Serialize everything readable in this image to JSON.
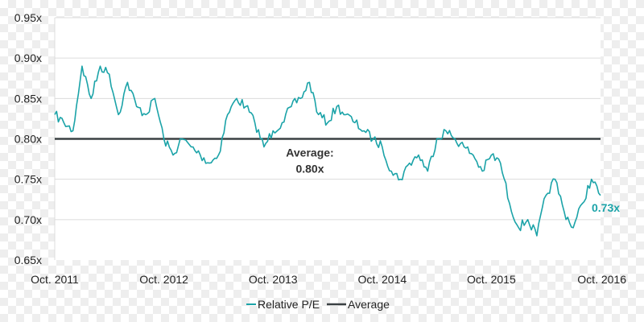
{
  "colors": {
    "series": "#1ba3a8",
    "average": "#3a4043",
    "grid": "#dcdcdc",
    "plot_bg": "#ffffff",
    "text": "#222222"
  },
  "chart_data": {
    "type": "line",
    "title": "",
    "xlabel": "",
    "ylabel": "",
    "ylim": [
      0.65,
      0.95
    ],
    "yticks": [
      "0.65x",
      "0.70x",
      "0.75x",
      "0.80x",
      "0.85x",
      "0.90x",
      "0.95x"
    ],
    "xlim": [
      "2011-10",
      "2016-10"
    ],
    "xticks": [
      "Oct. 2011",
      "Oct. 2012",
      "Oct. 2013",
      "Oct. 2014",
      "Oct. 2015",
      "Oct. 2016"
    ],
    "grid": true,
    "legend_position": "bottom",
    "series": [
      {
        "name": "Relative P/E",
        "color": "#1ba3a8",
        "x": [
          "2011-10",
          "2011-11",
          "2011-12",
          "2012-01",
          "2012-02",
          "2012-03",
          "2012-04",
          "2012-05",
          "2012-06",
          "2012-07",
          "2012-08",
          "2012-09",
          "2012-10",
          "2012-11",
          "2012-12",
          "2013-01",
          "2013-02",
          "2013-03",
          "2013-04",
          "2013-05",
          "2013-06",
          "2013-07",
          "2013-08",
          "2013-09",
          "2013-10",
          "2013-11",
          "2013-12",
          "2014-01",
          "2014-02",
          "2014-03",
          "2014-04",
          "2014-05",
          "2014-06",
          "2014-07",
          "2014-08",
          "2014-09",
          "2014-10",
          "2014-11",
          "2014-12",
          "2015-01",
          "2015-02",
          "2015-03",
          "2015-04",
          "2015-05",
          "2015-06",
          "2015-07",
          "2015-08",
          "2015-09",
          "2015-10",
          "2015-11",
          "2015-12",
          "2016-01",
          "2016-02",
          "2016-03",
          "2016-04",
          "2016-05",
          "2016-06",
          "2016-07",
          "2016-08",
          "2016-09",
          "2016-10"
        ],
        "y": [
          0.83,
          0.82,
          0.81,
          0.89,
          0.85,
          0.89,
          0.88,
          0.83,
          0.87,
          0.84,
          0.83,
          0.85,
          0.8,
          0.78,
          0.8,
          0.79,
          0.78,
          0.77,
          0.78,
          0.83,
          0.85,
          0.84,
          0.82,
          0.79,
          0.81,
          0.82,
          0.84,
          0.85,
          0.87,
          0.83,
          0.82,
          0.84,
          0.83,
          0.82,
          0.81,
          0.8,
          0.79,
          0.76,
          0.75,
          0.77,
          0.78,
          0.76,
          0.8,
          0.81,
          0.8,
          0.79,
          0.78,
          0.76,
          0.78,
          0.77,
          0.72,
          0.69,
          0.7,
          0.68,
          0.73,
          0.75,
          0.71,
          0.69,
          0.72,
          0.75,
          0.73
        ]
      },
      {
        "name": "Average",
        "color": "#3a4043",
        "value": 0.8
      }
    ],
    "annotations": {
      "average_line1": "Average:",
      "average_line2": "0.80x",
      "last_value": "0.73x"
    }
  }
}
